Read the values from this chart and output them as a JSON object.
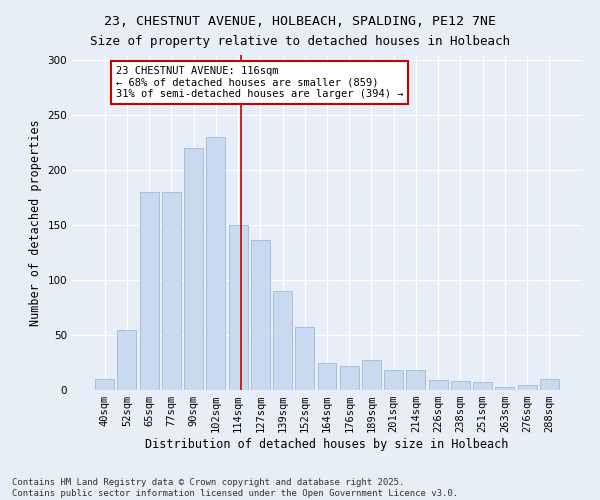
{
  "title_line1": "23, CHESTNUT AVENUE, HOLBEACH, SPALDING, PE12 7NE",
  "title_line2": "Size of property relative to detached houses in Holbeach",
  "xlabel": "Distribution of detached houses by size in Holbeach",
  "ylabel": "Number of detached properties",
  "categories": [
    "40sqm",
    "52sqm",
    "65sqm",
    "77sqm",
    "90sqm",
    "102sqm",
    "114sqm",
    "127sqm",
    "139sqm",
    "152sqm",
    "164sqm",
    "176sqm",
    "189sqm",
    "201sqm",
    "214sqm",
    "226sqm",
    "238sqm",
    "251sqm",
    "263sqm",
    "276sqm",
    "288sqm"
  ],
  "values": [
    10,
    55,
    180,
    180,
    220,
    230,
    150,
    137,
    90,
    57,
    25,
    22,
    27,
    18,
    18,
    9,
    8,
    7,
    3,
    5,
    10
  ],
  "bar_color": "#c9d9f0",
  "bar_edge_color": "#a0b8d8",
  "property_label": "23 CHESTNUT AVENUE: 116sqm",
  "annotation_line2": "← 68% of detached houses are smaller (859)",
  "annotation_line3": "31% of semi-detached houses are larger (394) →",
  "vline_color": "#cc0000",
  "vline_x": 6.154,
  "annotation_box_facecolor": "#ffffff",
  "annotation_box_edgecolor": "#cc0000",
  "ylim": [
    0,
    305
  ],
  "yticks": [
    0,
    50,
    100,
    150,
    200,
    250,
    300
  ],
  "background_color": "#e8eef8",
  "grid_color": "#ffffff",
  "title_fontsize": 9.5,
  "xlabel_fontsize": 8.5,
  "ylabel_fontsize": 8.5,
  "tick_fontsize": 7.5,
  "annotation_fontsize": 7.5,
  "footer_line1": "Contains HM Land Registry data © Crown copyright and database right 2025.",
  "footer_line2": "Contains public sector information licensed under the Open Government Licence v3.0.",
  "footer_fontsize": 6.5
}
